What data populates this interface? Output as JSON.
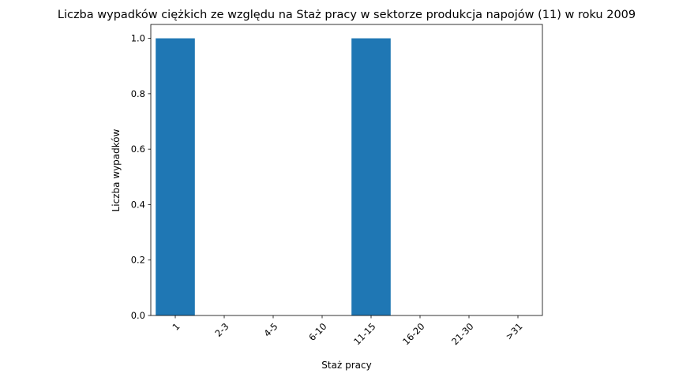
{
  "chart_data": {
    "type": "bar",
    "title": "Liczba wypadków ciężkich ze względu na Staż pracy w sektorze produkcja napojów  (11)   w roku 2009",
    "xlabel": "Staż pracy",
    "ylabel": "Liczba wypadków",
    "categories": [
      "1",
      "2-3",
      "4-5",
      "6-10",
      "11-15",
      "16-20",
      "21-30",
      ">31"
    ],
    "values": [
      1,
      0,
      0,
      0,
      1,
      0,
      0,
      0
    ],
    "ylim": [
      0,
      1.05
    ],
    "yticks": [
      "0.0",
      "0.2",
      "0.4",
      "0.6",
      "0.8",
      "1.0"
    ],
    "bar_color": "#1f77b4",
    "grid": false,
    "xtick_rotation_deg": 45
  }
}
